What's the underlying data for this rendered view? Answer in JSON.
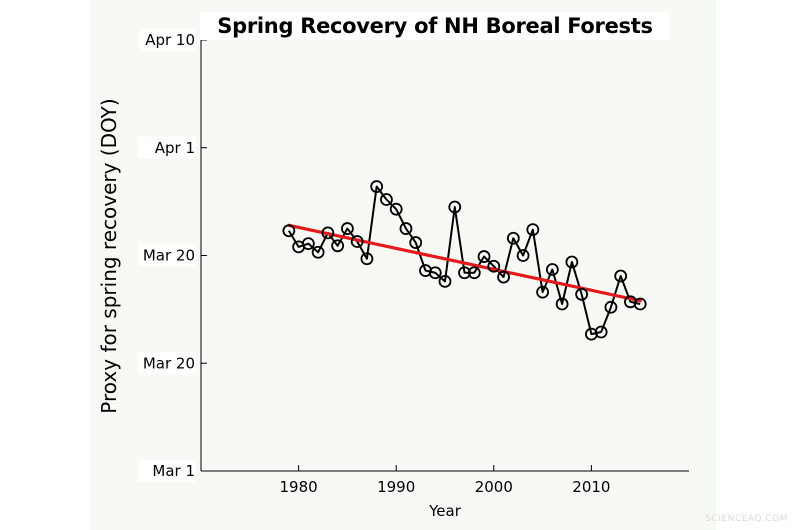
{
  "chart_data": {
    "type": "line",
    "title": "Spring Recovery of NH Boreal Forests",
    "xlabel": "Year",
    "ylabel": "Proxy for spring recovery (DOY)",
    "xlim": [
      1970,
      2020
    ],
    "ylim": [
      60,
      100
    ],
    "xticks": [
      1980,
      1990,
      2000,
      2010
    ],
    "yticks": [
      {
        "value": 60,
        "label": "Mar 1"
      },
      {
        "value": 70,
        "label": "Mar 20"
      },
      {
        "value": 80,
        "label": "Mar 20"
      },
      {
        "value": 90,
        "label": "Apr 1"
      },
      {
        "value": 100,
        "label": "Apr 10"
      }
    ],
    "grid": false,
    "series": [
      {
        "color": "#000000",
        "marker": "open-circle",
        "x": [
          1979,
          1980,
          1981,
          1982,
          1983,
          1984,
          1985,
          1986,
          1987,
          1988,
          1989,
          1990,
          1991,
          1992,
          1993,
          1994,
          1995,
          1996,
          1997,
          1998,
          1999,
          2000,
          2001,
          2002,
          2003,
          2004,
          2005,
          2006,
          2007,
          2008,
          2009,
          2010,
          2011,
          2012,
          2013,
          2014,
          2015
        ],
        "values": [
          82.3,
          80.8,
          81.1,
          80.3,
          82.1,
          80.9,
          82.5,
          81.3,
          79.7,
          86.4,
          85.2,
          84.3,
          82.5,
          81.2,
          78.6,
          78.4,
          77.6,
          84.5,
          78.4,
          78.4,
          79.9,
          79.0,
          78.0,
          81.6,
          80.0,
          82.4,
          76.6,
          78.7,
          75.5,
          79.4,
          76.4,
          72.7,
          72.9,
          75.2,
          78.1,
          75.7,
          75.5
        ]
      },
      {
        "color": "#e31a1c",
        "style": "linear-fit",
        "x": [
          1979,
          2015
        ],
        "values": [
          82.8,
          75.8
        ]
      }
    ]
  },
  "watermark": "SCIENCEAQ.COM"
}
